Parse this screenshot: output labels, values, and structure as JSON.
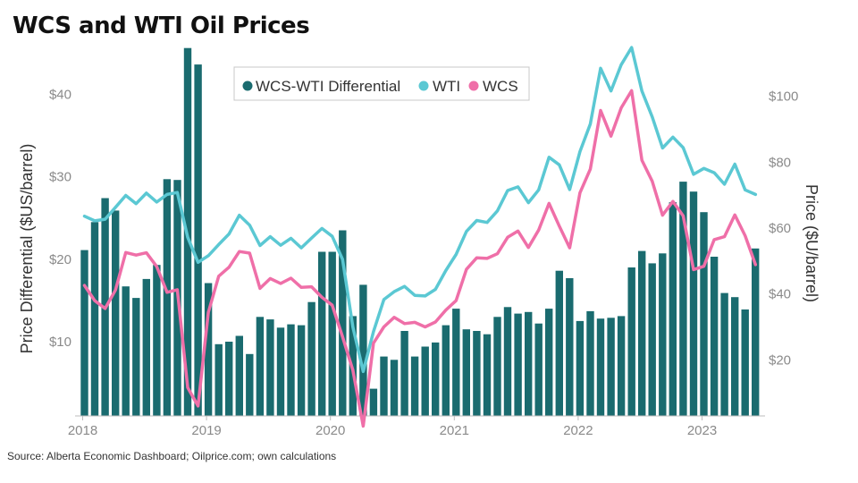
{
  "title": "WCS and WTI Oil Prices",
  "source": "Source: Alberta Economic Dashboard; Oilprice.com; own calculations",
  "chart_data": {
    "type": "bar+line",
    "title": "WCS and WTI Oil Prices",
    "x_tick_labels": [
      "2018",
      "2019",
      "2020",
      "2021",
      "2022",
      "2023"
    ],
    "x_start": "2018-01",
    "left_axis": {
      "label": "Price Differential ($US/barrel)",
      "ticks": [
        "$10",
        "$20",
        "$30",
        "$40"
      ],
      "tick_values": [
        10,
        20,
        30,
        40
      ],
      "ylim": [
        1,
        46
      ]
    },
    "right_axis": {
      "label": "Price ($U/barrel)",
      "ticks": [
        "$20",
        "$40",
        "$60",
        "$80",
        "$100"
      ],
      "tick_values": [
        20,
        40,
        60,
        80,
        100
      ],
      "ylim": [
        3,
        117
      ]
    },
    "legend": {
      "position": "top-center",
      "entries": [
        "WCS-WTI Differential",
        "WTI",
        "WCS"
      ]
    },
    "grid": false,
    "colors": {
      "bar": "#1a6b6f",
      "wti": "#5bc8d3",
      "wcs": "#ef6fa8",
      "tick": "#8a8a8a"
    },
    "series": [
      {
        "name": "WCS-WTI Differential",
        "type": "bar",
        "axis": "left",
        "values": [
          21.1,
          24.5,
          27.4,
          25.9,
          16.7,
          15.3,
          17.6,
          19.3,
          29.7,
          29.6,
          45.6,
          43.6,
          17.1,
          9.7,
          10.0,
          10.7,
          8.5,
          13.0,
          12.7,
          11.7,
          12.1,
          12.0,
          14.8,
          20.9,
          20.9,
          23.5,
          13.1,
          16.9,
          4.3,
          8.2,
          7.8,
          11.3,
          8.2,
          9.4,
          9.9,
          12.0,
          14.0,
          11.5,
          11.3,
          10.9,
          13.0,
          14.2,
          13.4,
          13.6,
          12.2,
          14.0,
          18.6,
          17.7,
          12.5,
          13.7,
          12.8,
          12.9,
          13.1,
          19.0,
          21.0,
          19.5,
          20.7,
          26.9,
          29.4,
          28.2,
          25.7,
          20.3,
          15.9,
          15.4,
          13.9,
          21.3
        ]
      },
      {
        "name": "WTI",
        "type": "line",
        "axis": "right",
        "values": [
          63.6,
          62.2,
          62.7,
          66.3,
          69.9,
          67.4,
          70.6,
          67.9,
          70.2,
          70.8,
          57.2,
          49.6,
          51.6,
          55.0,
          58.2,
          63.9,
          60.9,
          54.7,
          57.4,
          54.8,
          56.9,
          54.0,
          57.0,
          59.9,
          57.5,
          50.5,
          30.0,
          16.5,
          28.6,
          38.3,
          40.7,
          42.3,
          39.6,
          39.4,
          41.4,
          47.1,
          52.0,
          59.0,
          62.3,
          61.7,
          65.2,
          71.4,
          72.5,
          67.7,
          71.6,
          81.5,
          79.2,
          71.7,
          83.2,
          91.6,
          108.5,
          101.6,
          109.6,
          114.8,
          101.6,
          93.7,
          84.3,
          87.6,
          84.4,
          76.3,
          78.1,
          76.8,
          73.3,
          79.4,
          71.6,
          70.2
        ]
      },
      {
        "name": "WCS",
        "type": "line",
        "axis": "right",
        "values": [
          42.6,
          38.0,
          35.6,
          41.2,
          52.6,
          51.8,
          52.5,
          48.3,
          40.5,
          41.3,
          11.6,
          6.0,
          34.4,
          45.4,
          48.1,
          52.9,
          52.4,
          41.7,
          44.7,
          43.2,
          44.8,
          42.0,
          42.2,
          39.0,
          36.6,
          27.0,
          16.9,
          -0.1,
          25.1,
          30.0,
          32.9,
          31.0,
          31.4,
          30.0,
          31.5,
          35.1,
          38.0,
          47.5,
          51.0,
          50.8,
          52.2,
          57.2,
          59.1,
          54.1,
          59.4,
          67.5,
          60.6,
          54.0,
          70.7,
          77.9,
          95.7,
          87.9,
          96.5,
          101.7,
          80.6,
          74.2,
          63.9,
          68.1,
          63.7,
          47.4,
          48.4,
          56.5,
          57.4,
          64.0,
          57.7,
          48.9
        ]
      }
    ]
  }
}
